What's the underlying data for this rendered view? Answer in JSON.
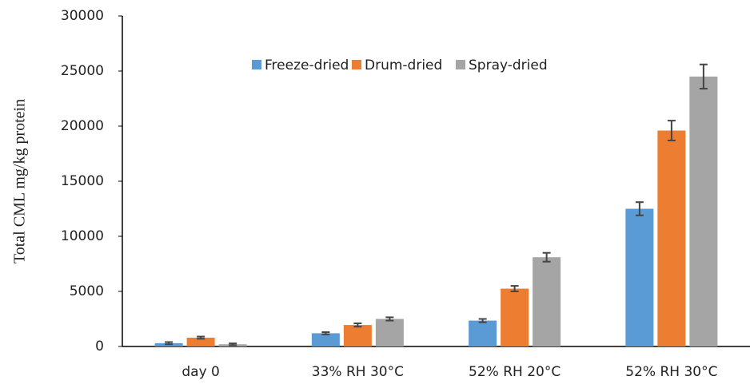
{
  "chart_data": {
    "type": "bar",
    "y_label": "Total CML mg/kg protein",
    "categories": [
      "day 0",
      "33% RH 30°C",
      "52% RH 20°C",
      "52% RH 30°C"
    ],
    "series": [
      {
        "name": "Freeze-dried",
        "color": "#5b9bd5",
        "values": [
          300,
          1200,
          2350,
          12500
        ],
        "errors": [
          100,
          100,
          150,
          600
        ]
      },
      {
        "name": "Drum-dried",
        "color": "#ed7d31",
        "values": [
          800,
          1950,
          5250,
          19600
        ],
        "errors": [
          100,
          150,
          250,
          900
        ]
      },
      {
        "name": "Spray-dried",
        "color": "#a5a5a5",
        "values": [
          200,
          2500,
          8100,
          24500
        ],
        "errors": [
          80,
          150,
          400,
          1100
        ]
      }
    ],
    "ylim": [
      0,
      30000
    ],
    "yticks": [
      0,
      5000,
      10000,
      15000,
      20000,
      25000,
      30000
    ],
    "grid": false,
    "legend": "top"
  }
}
